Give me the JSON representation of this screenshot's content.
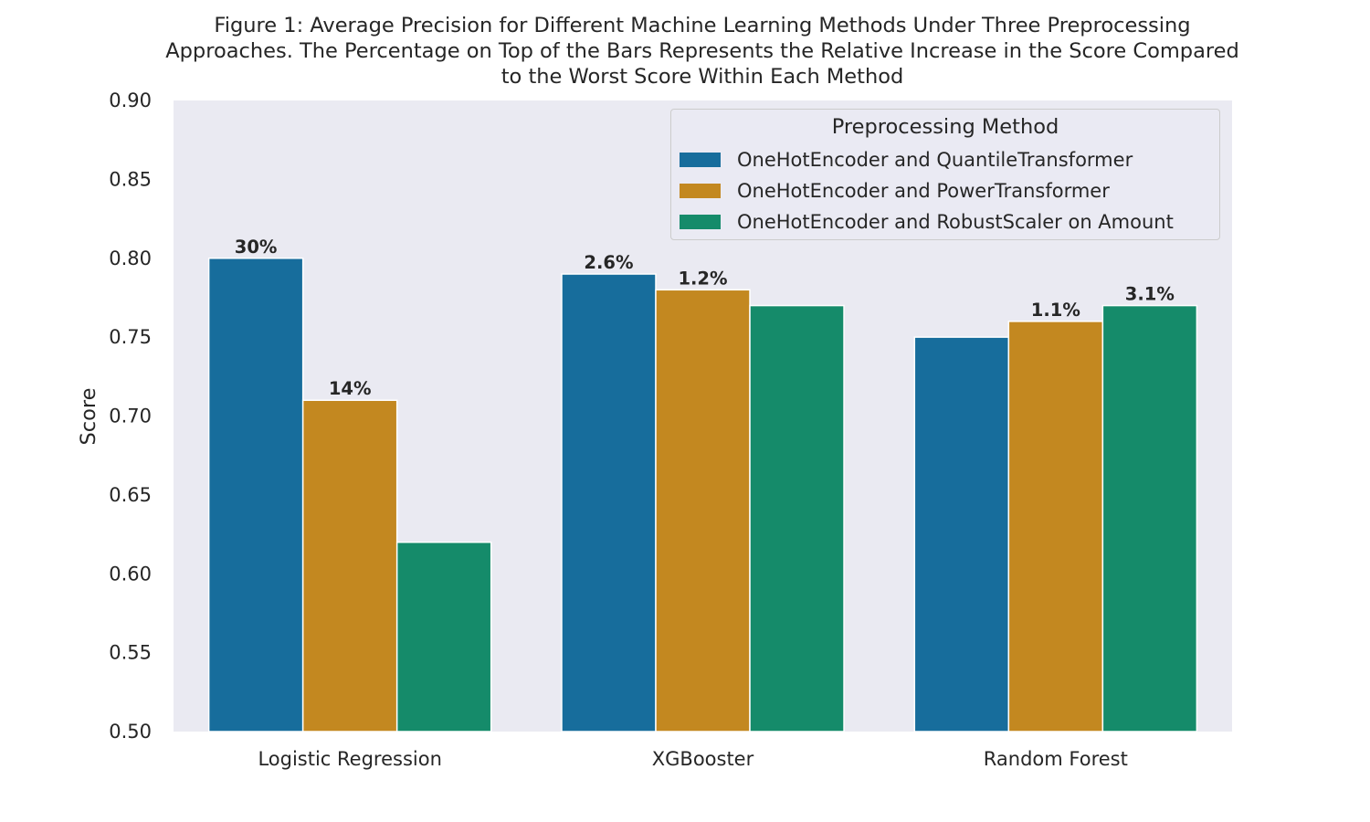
{
  "chart_data": {
    "type": "bar",
    "title_lines": [
      "Figure 1: Average Precision for Different Machine Learning Methods Under Three Preprocessing",
      "Approaches. The Percentage on Top of the Bars Represents the Relative Increase in the Score Compared",
      "to the Worst Score Within Each Method"
    ],
    "xlabel": "",
    "ylabel": "Score",
    "ylim": [
      0.5,
      0.9
    ],
    "yticks": [
      "0.50",
      "0.55",
      "0.60",
      "0.65",
      "0.70",
      "0.75",
      "0.80",
      "0.85",
      "0.90"
    ],
    "categories": [
      "Logistic Regression",
      "XGBooster",
      "Random Forest"
    ],
    "legend_title": "Preprocessing Method",
    "legend_position": "top-right",
    "grid": false,
    "series": [
      {
        "name": "OneHotEncoder and QuantileTransformer",
        "color": "#176d9c",
        "values": [
          0.8,
          0.79,
          0.75
        ],
        "labels": [
          "30%",
          "2.6%",
          ""
        ]
      },
      {
        "name": "OneHotEncoder and PowerTransformer",
        "color": "#c38820",
        "values": [
          0.71,
          0.78,
          0.76
        ],
        "labels": [
          "14%",
          "1.2%",
          "1.1%"
        ]
      },
      {
        "name": "OneHotEncoder and RobustScaler on Amount",
        "color": "#158b6a",
        "values": [
          0.62,
          0.77,
          0.77
        ],
        "labels": [
          "",
          "",
          "3.1%"
        ]
      }
    ]
  }
}
